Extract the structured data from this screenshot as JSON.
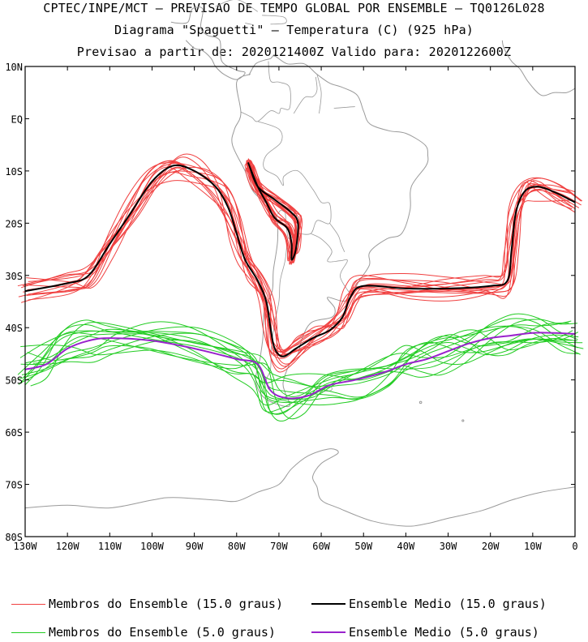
{
  "header": {
    "line1": "CPTEC/INPE/MCT – PREVISAO DE TEMPO GLOBAL POR ENSEMBLE – TQ0126L028",
    "line2": "Diagrama \"Spaguetti\" – Temperatura (C) (925 hPa)",
    "line3": "Previsao a partir de: 2020121400Z  Valido para: 2020122600Z"
  },
  "axes": {
    "lat_labels": [
      "10N",
      "EQ",
      "10S",
      "20S",
      "30S",
      "40S",
      "50S",
      "60S",
      "70S",
      "80S"
    ],
    "lon_labels": [
      "130W",
      "120W",
      "110W",
      "100W",
      "90W",
      "80W",
      "70W",
      "60W",
      "50W",
      "40W",
      "30W",
      "20W",
      "10W",
      "0"
    ],
    "lon_range": [
      -130,
      0
    ],
    "lat_range": [
      -80,
      10
    ]
  },
  "colors": {
    "member_15": "#f04040",
    "mean_15": "#000000",
    "member_5": "#22cc22",
    "mean_5": "#9922cc",
    "coast": "#9a9a9a"
  },
  "legend": [
    {
      "label": "Membros do Ensemble (15.0 graus)",
      "color": "#f04040"
    },
    {
      "label": "Ensemble Medio (15.0 graus)",
      "color": "#000000"
    },
    {
      "label": "Membros do Ensemble (5.0 graus)",
      "color": "#22cc22"
    },
    {
      "label": "Ensemble Medio (5.0 graus)",
      "color": "#9922cc"
    }
  ],
  "chart_data": {
    "type": "map-contour",
    "series": [
      {
        "name": "Ensemble Medio (15.0 graus)",
        "points": [
          [
            -130,
            -33
          ],
          [
            -120,
            -31.5
          ],
          [
            -115,
            -30
          ],
          [
            -110,
            -24
          ],
          [
            -105,
            -18
          ],
          [
            -100,
            -12
          ],
          [
            -95,
            -9
          ],
          [
            -90,
            -10
          ],
          [
            -85,
            -13
          ],
          [
            -82,
            -17
          ],
          [
            -80,
            -22
          ],
          [
            -78,
            -27
          ],
          [
            -75,
            -31
          ],
          [
            -73,
            -35
          ],
          [
            -72,
            -40
          ],
          [
            -71,
            -44
          ],
          [
            -69,
            -45.5
          ],
          [
            -66,
            -44
          ],
          [
            -62,
            -42
          ],
          [
            -58,
            -40.5
          ],
          [
            -55,
            -38
          ],
          [
            -53,
            -34
          ],
          [
            -50,
            -32
          ],
          [
            -40,
            -32.5
          ],
          [
            -30,
            -32.5
          ],
          [
            -20,
            -32
          ],
          [
            -16,
            -31
          ],
          [
            -15,
            -25
          ],
          [
            -14,
            -18
          ],
          [
            -12,
            -14
          ],
          [
            -9,
            -13
          ],
          [
            -5,
            -14
          ],
          [
            0,
            -16
          ]
        ]
      },
      {
        "name": "Ensemble Medio (15.0 graus) Andes",
        "points": [
          [
            -77,
            -9
          ],
          [
            -75,
            -13
          ],
          [
            -71,
            -15.5
          ],
          [
            -67,
            -18
          ],
          [
            -65.5,
            -20
          ],
          [
            -66,
            -25
          ],
          [
            -67,
            -27
          ],
          [
            -67,
            -24
          ],
          [
            -68,
            -21
          ],
          [
            -71,
            -19
          ],
          [
            -73,
            -16
          ],
          [
            -75,
            -13
          ],
          [
            -77,
            -9
          ]
        ]
      },
      {
        "name": "Ensemble Medio (5.0 graus)",
        "points": [
          [
            -130,
            -48
          ],
          [
            -125,
            -47
          ],
          [
            -120,
            -44
          ],
          [
            -115,
            -42.5
          ],
          [
            -110,
            -42
          ],
          [
            -100,
            -42.5
          ],
          [
            -90,
            -44
          ],
          [
            -80,
            -46
          ],
          [
            -75,
            -47
          ],
          [
            -72,
            -52
          ],
          [
            -68,
            -53.5
          ],
          [
            -63,
            -53
          ],
          [
            -58,
            -51
          ],
          [
            -52,
            -50
          ],
          [
            -45,
            -48.5
          ],
          [
            -40,
            -47
          ],
          [
            -35,
            -46
          ],
          [
            -30,
            -44.5
          ],
          [
            -25,
            -43
          ],
          [
            -20,
            -42
          ],
          [
            -15,
            -41.5
          ],
          [
            -10,
            -41
          ],
          [
            -5,
            -41
          ],
          [
            0,
            -41.2
          ]
        ]
      }
    ]
  }
}
